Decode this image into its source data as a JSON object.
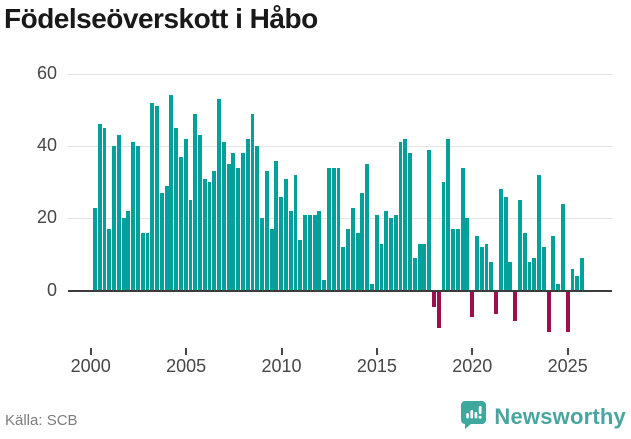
{
  "header": {
    "title": "Födelseöverskott i Håbo"
  },
  "footer": {
    "source": "Källa: SCB",
    "brand": "Newsworthy"
  },
  "chart_data": {
    "type": "bar",
    "title": "Födelseöverskott i Håbo",
    "source": "Källa: SCB",
    "frequency": "quarterly",
    "start": "2000-Q1",
    "end": "2025-Q3",
    "series": [
      {
        "name": "Födelseöverskott (födda minus döda) per kvartal",
        "values": [
          23,
          46,
          45,
          17,
          40,
          43,
          20,
          22,
          41,
          40,
          16,
          16,
          52,
          51,
          27,
          29,
          54,
          45,
          37,
          42,
          25,
          49,
          43,
          31,
          30,
          33,
          53,
          41,
          35,
          38,
          34,
          38,
          42,
          49,
          40,
          20,
          33,
          17,
          36,
          26,
          31,
          22,
          32,
          14,
          21,
          21,
          21,
          22,
          3,
          34,
          34,
          34,
          12,
          17,
          23,
          16,
          27,
          35,
          2,
          21,
          13,
          22,
          20,
          21,
          41,
          42,
          38,
          9,
          13,
          13,
          39,
          -4,
          -10,
          30,
          42,
          17,
          17,
          34,
          20,
          -7,
          15,
          12,
          13,
          8,
          -6,
          28,
          26,
          8,
          -8,
          25,
          16,
          8,
          9,
          32,
          12,
          -11,
          15,
          2,
          24,
          -11,
          6,
          4,
          9
        ]
      }
    ],
    "x_tick_labels": [
      "2000",
      "2005",
      "2010",
      "2015",
      "2020",
      "2025"
    ],
    "y_ticks": [
      0,
      20,
      40,
      60
    ],
    "ylim": [
      -15,
      62
    ],
    "grid": "horizontal",
    "legend": "none",
    "colors": {
      "positive": "#06a09a",
      "negative": "#9b0f4e"
    }
  }
}
